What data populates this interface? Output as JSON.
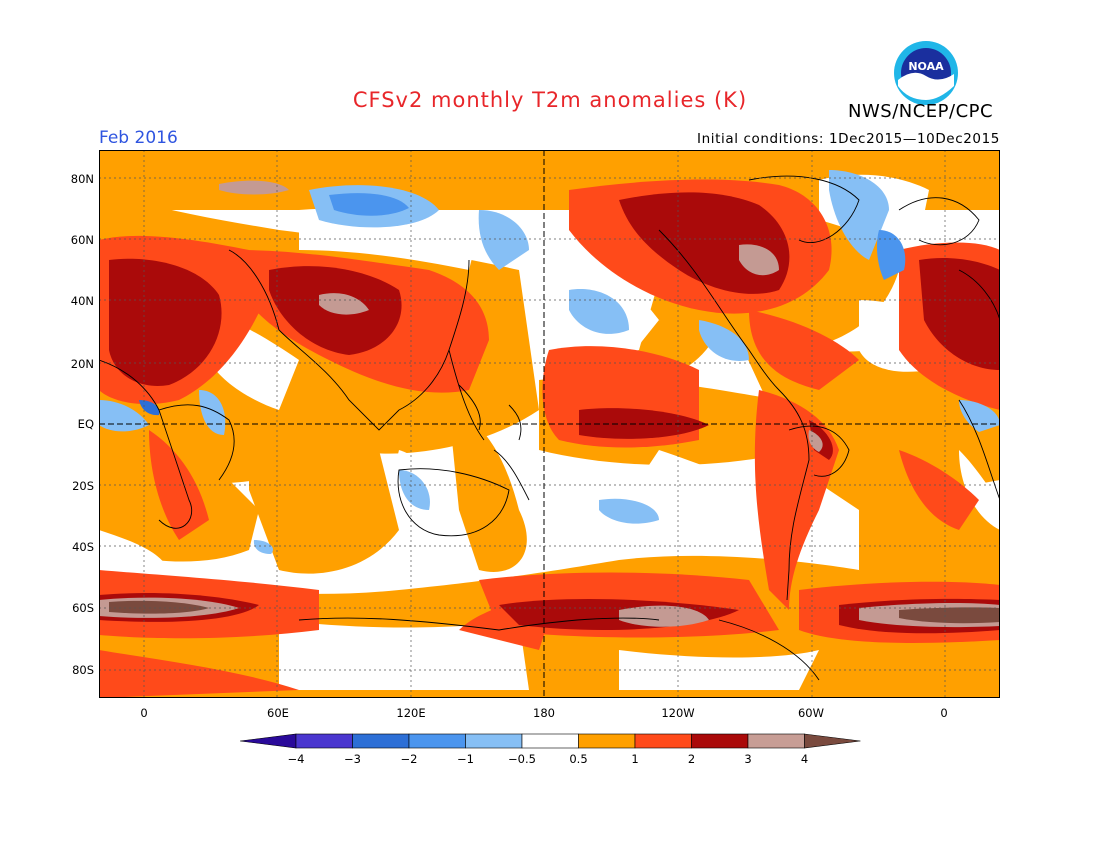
{
  "header": {
    "title": "CFSv2 monthly T2m anomalies (K)",
    "agency": "NWS/NCEP/CPC",
    "period": "Feb 2016",
    "initial_conditions": "Initial conditions: 1Dec2015—10Dec2015",
    "logo_text": "NOAA"
  },
  "axes": {
    "lat_labels": [
      "80N",
      "60N",
      "40N",
      "20N",
      "EQ",
      "20S",
      "40S",
      "60S",
      "80S"
    ],
    "lon_labels": [
      "0",
      "60E",
      "120E",
      "180",
      "120W",
      "60W",
      "0"
    ]
  },
  "colorbar": {
    "labels": [
      "−4",
      "−3",
      "−2",
      "−1",
      "−0.5",
      "0.5",
      "1",
      "2",
      "3",
      "4"
    ],
    "colors": [
      "#2a0a9a",
      "#4a36cf",
      "#2d6fd6",
      "#4b95ee",
      "#86bff5",
      "#ffffff",
      "#ffa000",
      "#ff4a1a",
      "#aa0a0a",
      "#c79d95",
      "#7a4a3e"
    ]
  },
  "map_colors": {
    "orange": "#ffa000",
    "red": "#ff4a1a",
    "darkred": "#aa0a0a",
    "rose": "#c49a93",
    "brown": "#7a4a3e",
    "lightblue": "#86bff5",
    "blue": "#4b95ee",
    "midblue": "#2d6fd6"
  }
}
